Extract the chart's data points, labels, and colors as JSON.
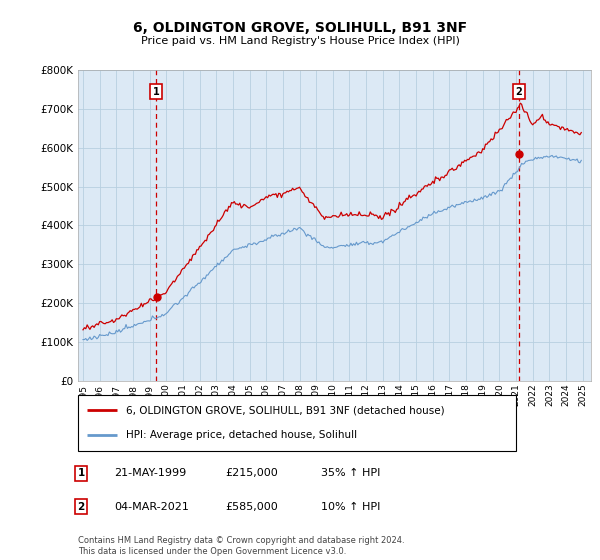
{
  "title": "6, OLDINGTON GROVE, SOLIHULL, B91 3NF",
  "subtitle": "Price paid vs. HM Land Registry's House Price Index (HPI)",
  "hpi_label": "HPI: Average price, detached house, Solihull",
  "property_label": "6, OLDINGTON GROVE, SOLIHULL, B91 3NF (detached house)",
  "legend1_date": "21-MAY-1999",
  "legend1_price": "£215,000",
  "legend1_hpi": "35% ↑ HPI",
  "legend2_date": "04-MAR-2021",
  "legend2_price": "£585,000",
  "legend2_hpi": "10% ↑ HPI",
  "footer": "Contains HM Land Registry data © Crown copyright and database right 2024.\nThis data is licensed under the Open Government Licence v3.0.",
  "sale1_year": 1999.38,
  "sale1_value": 215000,
  "sale2_year": 2021.17,
  "sale2_value": 585000,
  "ylim": [
    0,
    800000
  ],
  "xlim_start": 1994.7,
  "xlim_end": 2025.5,
  "bg_color": "#ffffff",
  "plot_bg_color": "#dce9f5",
  "grid_color": "#b8cfe0",
  "red_line_color": "#cc0000",
  "blue_line_color": "#6699cc",
  "dashed_color": "#cc0000"
}
